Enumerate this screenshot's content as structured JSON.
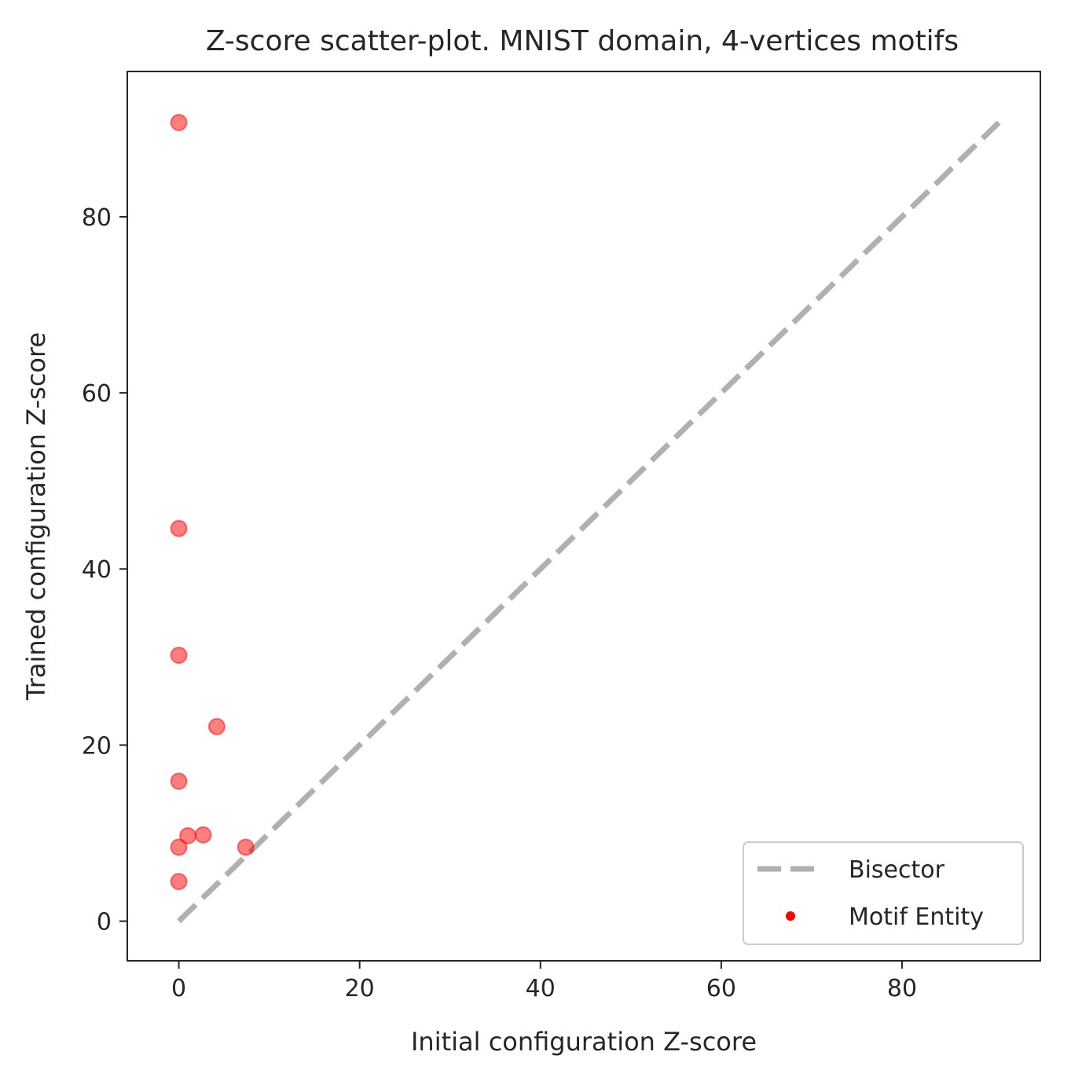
{
  "chart_data": {
    "type": "scatter",
    "title": "Z-score scatter-plot. MNIST domain, 4-vertices motifs",
    "xlabel": "Initial configuration Z-score",
    "ylabel": "Trained configuration Z-score",
    "xlim": [
      -5.7,
      95.3
    ],
    "ylim": [
      -4.5,
      96.5
    ],
    "xticks": [
      0,
      20,
      40,
      60,
      80
    ],
    "yticks": [
      0,
      20,
      40,
      60,
      80
    ],
    "grid": false,
    "legend_position": "lower-right",
    "series": [
      {
        "name": "Bisector",
        "kind": "line",
        "style": "dashed",
        "color": "#b0b0b0",
        "x": [
          0,
          90.7
        ],
        "y": [
          0,
          90.7
        ]
      },
      {
        "name": "Motif Entity",
        "kind": "scatter",
        "color": "#ff0000",
        "points": [
          {
            "x": 0.0,
            "y": 90.7
          },
          {
            "x": 0.0,
            "y": 44.6
          },
          {
            "x": 0.0,
            "y": 30.2
          },
          {
            "x": 4.2,
            "y": 22.1
          },
          {
            "x": 0.0,
            "y": 15.9
          },
          {
            "x": 1.0,
            "y": 9.7
          },
          {
            "x": 2.7,
            "y": 9.8
          },
          {
            "x": 0.0,
            "y": 8.4
          },
          {
            "x": 7.4,
            "y": 8.4
          },
          {
            "x": 0.0,
            "y": 4.5
          }
        ]
      }
    ]
  }
}
